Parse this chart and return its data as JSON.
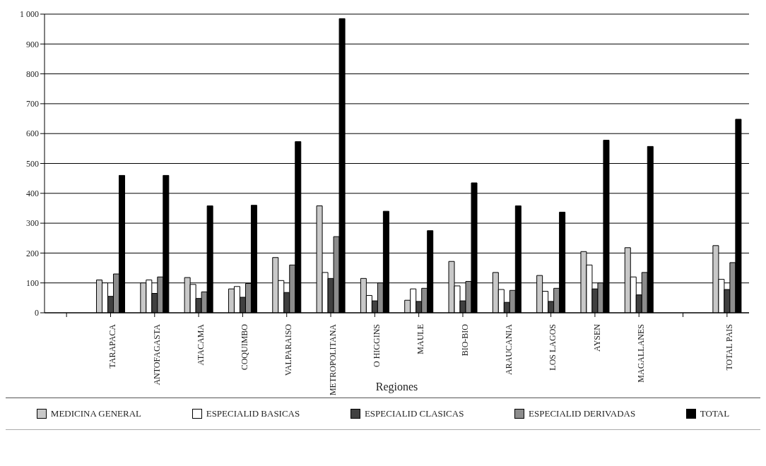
{
  "chart_data": {
    "type": "bar",
    "xlabel": "Regiones",
    "categories": [
      null,
      "TARAPACA",
      "ANTOFAGASTA",
      "ATACAMA",
      "COQUIMBO",
      "VALPARAISO",
      "METROPOLITANA",
      "O HIGGINS",
      "MAULE",
      "BIO-BIO",
      "ARAUCANIA",
      "LOS LAGOS",
      "AYSEN",
      "MAGALLANES",
      null,
      "TOTAL PAIS"
    ],
    "series": [
      {
        "name": "MEDICINA GENERAL",
        "color": "#c8c8c8",
        "values": [
          null,
          110,
          100,
          118,
          80,
          185,
          358,
          115,
          42,
          172,
          135,
          125,
          205,
          218,
          null,
          225
        ]
      },
      {
        "name": "ESPECIALID BASICAS",
        "color": "#ffffff",
        "values": [
          null,
          100,
          110,
          95,
          88,
          108,
          135,
          58,
          80,
          90,
          78,
          72,
          160,
          120,
          null,
          112
        ]
      },
      {
        "name": "ESPECIALID CLASICAS",
        "color": "#404040",
        "values": [
          null,
          55,
          65,
          48,
          52,
          68,
          115,
          40,
          38,
          40,
          35,
          38,
          80,
          60,
          null,
          78
        ]
      },
      {
        "name": "ESPECIALID DERIVADAS",
        "color": "#8c8c8c",
        "values": [
          null,
          130,
          120,
          70,
          98,
          160,
          255,
          100,
          82,
          105,
          75,
          82,
          100,
          135,
          null,
          168
        ]
      },
      {
        "name": "TOTAL",
        "color": "#000000",
        "values": [
          null,
          460,
          460,
          358,
          360,
          573,
          985,
          340,
          275,
          435,
          358,
          337,
          578,
          557,
          null,
          648
        ]
      }
    ],
    "ylim": [
      0,
      1000
    ],
    "yticks": [
      0,
      100,
      200,
      300,
      400,
      500,
      600,
      700,
      800,
      900,
      {
        "value": 1000,
        "label": "1 000"
      }
    ],
    "grid": "y",
    "legend": "bottom"
  }
}
